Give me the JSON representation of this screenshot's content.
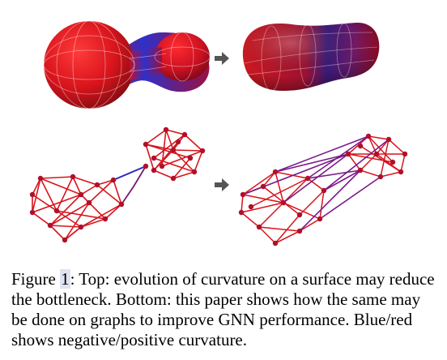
{
  "caption": {
    "prefix": "Figure ",
    "number": "1",
    "body": ": Top: evolution of curvature on a surface may reduce the bottleneck. Bottom: this paper shows how the same may be done on graphs to improve GNN performance. Blue/red shows negative/positive curvature."
  },
  "colors": {
    "positive_curvature": "#d8141c",
    "negative_curvature": "#2a2ab8",
    "arrow": "#555555"
  }
}
